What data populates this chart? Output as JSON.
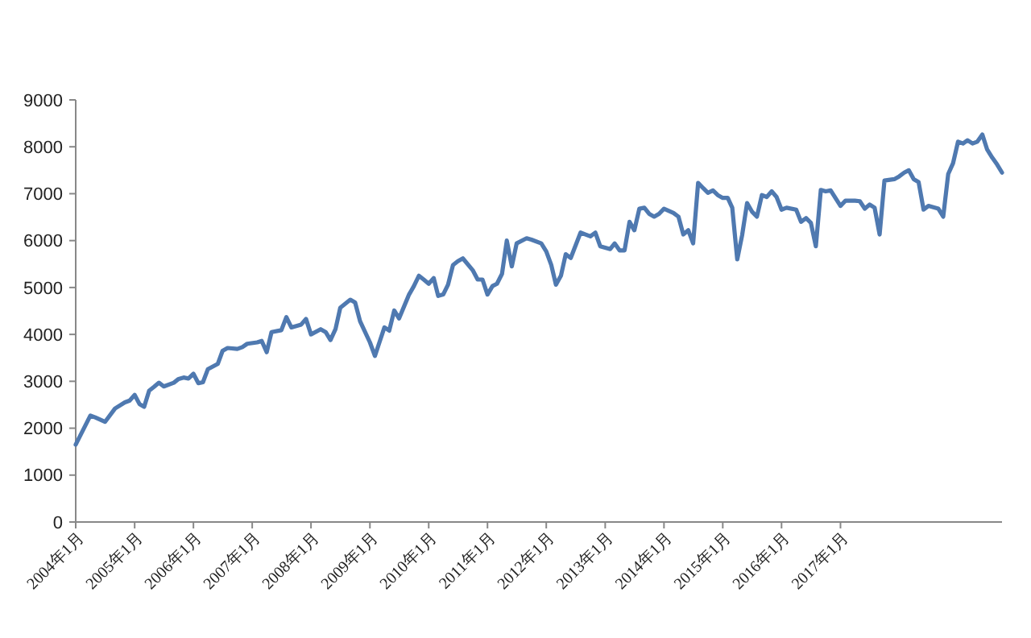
{
  "chart_data": {
    "type": "line",
    "x": [
      "2004-01",
      "2004-04",
      "2004-05",
      "2004-07",
      "2004-09",
      "2004-11",
      "2004-12",
      "2005-01",
      "2005-02",
      "2005-03",
      "2005-04",
      "2005-05",
      "2005-06",
      "2005-07",
      "2005-09",
      "2005-10",
      "2005-11",
      "2005-12",
      "2006-01",
      "2006-02",
      "2006-03",
      "2006-04",
      "2006-06",
      "2006-07",
      "2006-08",
      "2006-10",
      "2006-11",
      "2006-12",
      "2007-02",
      "2007-03",
      "2007-04",
      "2007-05",
      "2007-07",
      "2007-08",
      "2007-09",
      "2007-11",
      "2007-12",
      "2008-01",
      "2008-03",
      "2008-04",
      "2008-05",
      "2008-06",
      "2008-07",
      "2008-09",
      "2008-10",
      "2008-11",
      "2009-01",
      "2009-02",
      "2009-03",
      "2009-04",
      "2009-05",
      "2009-06",
      "2009-07",
      "2009-09",
      "2009-10",
      "2009-11",
      "2009-12",
      "2010-01",
      "2010-02",
      "2010-03",
      "2010-04",
      "2010-05",
      "2010-06",
      "2010-07",
      "2010-08",
      "2010-10",
      "2010-11",
      "2010-12",
      "2011-01",
      "2011-02",
      "2011-03",
      "2011-04",
      "2011-05",
      "2011-06",
      "2011-07",
      "2011-09",
      "2011-10",
      "2011-12",
      "2012-01",
      "2012-02",
      "2012-03",
      "2012-04",
      "2012-05",
      "2012-06",
      "2012-08",
      "2012-09",
      "2012-10",
      "2012-11",
      "2012-12",
      "2013-02",
      "2013-03",
      "2013-04",
      "2013-05",
      "2013-06",
      "2013-07",
      "2013-08",
      "2013-09",
      "2013-10",
      "2013-11",
      "2013-12",
      "2014-01",
      "2014-03",
      "2014-04",
      "2014-05",
      "2014-06",
      "2014-07",
      "2014-08",
      "2014-09",
      "2014-10",
      "2014-11",
      "2014-12",
      "2015-01",
      "2015-02",
      "2015-03",
      "2015-04",
      "2015-05",
      "2015-06",
      "2015-07",
      "2015-08",
      "2015-09",
      "2015-10",
      "2015-11",
      "2015-12",
      "2016-01",
      "2016-02",
      "2016-04",
      "2016-05",
      "2016-06",
      "2016-07",
      "2016-08",
      "2016-09",
      "2016-10",
      "2016-11",
      "2017-01",
      "2017-02",
      "2017-04",
      "2017-05",
      "2017-06",
      "2017-07",
      "2017-08",
      "2017-09",
      "2017-10",
      "2017-12",
      "2018-01",
      "2018-02",
      "2018-03",
      "2018-04",
      "2018-05",
      "2018-06",
      "2018-07",
      "2018-09",
      "2018-10",
      "2018-11",
      "2018-12",
      "2019-01",
      "2019-02",
      "2019-03",
      "2019-04",
      "2019-05",
      "2019-06",
      "2019-07",
      "2019-08",
      "2019-09",
      "2019-10"
    ],
    "series": [
      {
        "color": "#4f79b0",
        "values": [
          1650,
          2270,
          2230,
          2135,
          2420,
          2550,
          2590,
          2710,
          2510,
          2455,
          2800,
          2880,
          2970,
          2890,
          2970,
          3050,
          3080,
          3060,
          3160,
          2960,
          2980,
          3260,
          3370,
          3650,
          3710,
          3690,
          3730,
          3800,
          3830,
          3860,
          3620,
          4050,
          4090,
          4370,
          4150,
          4210,
          4330,
          4000,
          4110,
          4050,
          3880,
          4110,
          4570,
          4740,
          4680,
          4280,
          3830,
          3540,
          3830,
          4150,
          4080,
          4510,
          4340,
          4850,
          5030,
          5250,
          5170,
          5080,
          5200,
          4820,
          4850,
          5060,
          5480,
          5560,
          5620,
          5370,
          5170,
          5170,
          4850,
          5030,
          5080,
          5290,
          6000,
          5450,
          5940,
          6050,
          6020,
          5940,
          5770,
          5480,
          5060,
          5250,
          5710,
          5630,
          6170,
          6130,
          6090,
          6170,
          5880,
          5820,
          5940,
          5790,
          5790,
          6400,
          6220,
          6680,
          6700,
          6570,
          6510,
          6570,
          6680,
          6590,
          6510,
          6130,
          6220,
          5940,
          7230,
          7120,
          7020,
          7070,
          6970,
          6910,
          6910,
          6700,
          5600,
          6110,
          6800,
          6620,
          6510,
          6970,
          6930,
          7050,
          6930,
          6660,
          6700,
          6660,
          6400,
          6480,
          6380,
          5880,
          7080,
          7050,
          7070,
          6740,
          6850,
          6850,
          6840,
          6680,
          6770,
          6700,
          6130,
          7280,
          7310,
          7370,
          7450,
          7500,
          7310,
          7250,
          6660,
          6740,
          6680,
          6510,
          7420,
          7650,
          8110,
          8070,
          8140,
          8070,
          8110,
          8260,
          7940,
          7770,
          7620,
          7450
        ]
      }
    ],
    "xlim": [
      "2004-01",
      "2019-10"
    ],
    "xticks": [
      {
        "value": "2004-01",
        "label": "2004年1月"
      },
      {
        "value": "2005-01",
        "label": "2005年1月"
      },
      {
        "value": "2006-01",
        "label": "2006年1月"
      },
      {
        "value": "2007-01",
        "label": "2007年1月"
      },
      {
        "value": "2008-01",
        "label": "2008年1月"
      },
      {
        "value": "2009-01",
        "label": "2009年1月"
      },
      {
        "value": "2010-01",
        "label": "2010年1月"
      },
      {
        "value": "2011-01",
        "label": "2011年1月"
      },
      {
        "value": "2012-01",
        "label": "2012年1月"
      },
      {
        "value": "2013-01",
        "label": "2013年1月"
      },
      {
        "value": "2014-01",
        "label": "2014年1月"
      },
      {
        "value": "2015-01",
        "label": "2015年1月"
      },
      {
        "value": "2016-01",
        "label": "2016年1月"
      },
      {
        "value": "2017-01",
        "label": "2017年1月"
      }
    ],
    "ylim": [
      0,
      9000
    ],
    "yticks": [
      0,
      1000,
      2000,
      3000,
      4000,
      5000,
      6000,
      7000,
      8000,
      9000
    ]
  }
}
